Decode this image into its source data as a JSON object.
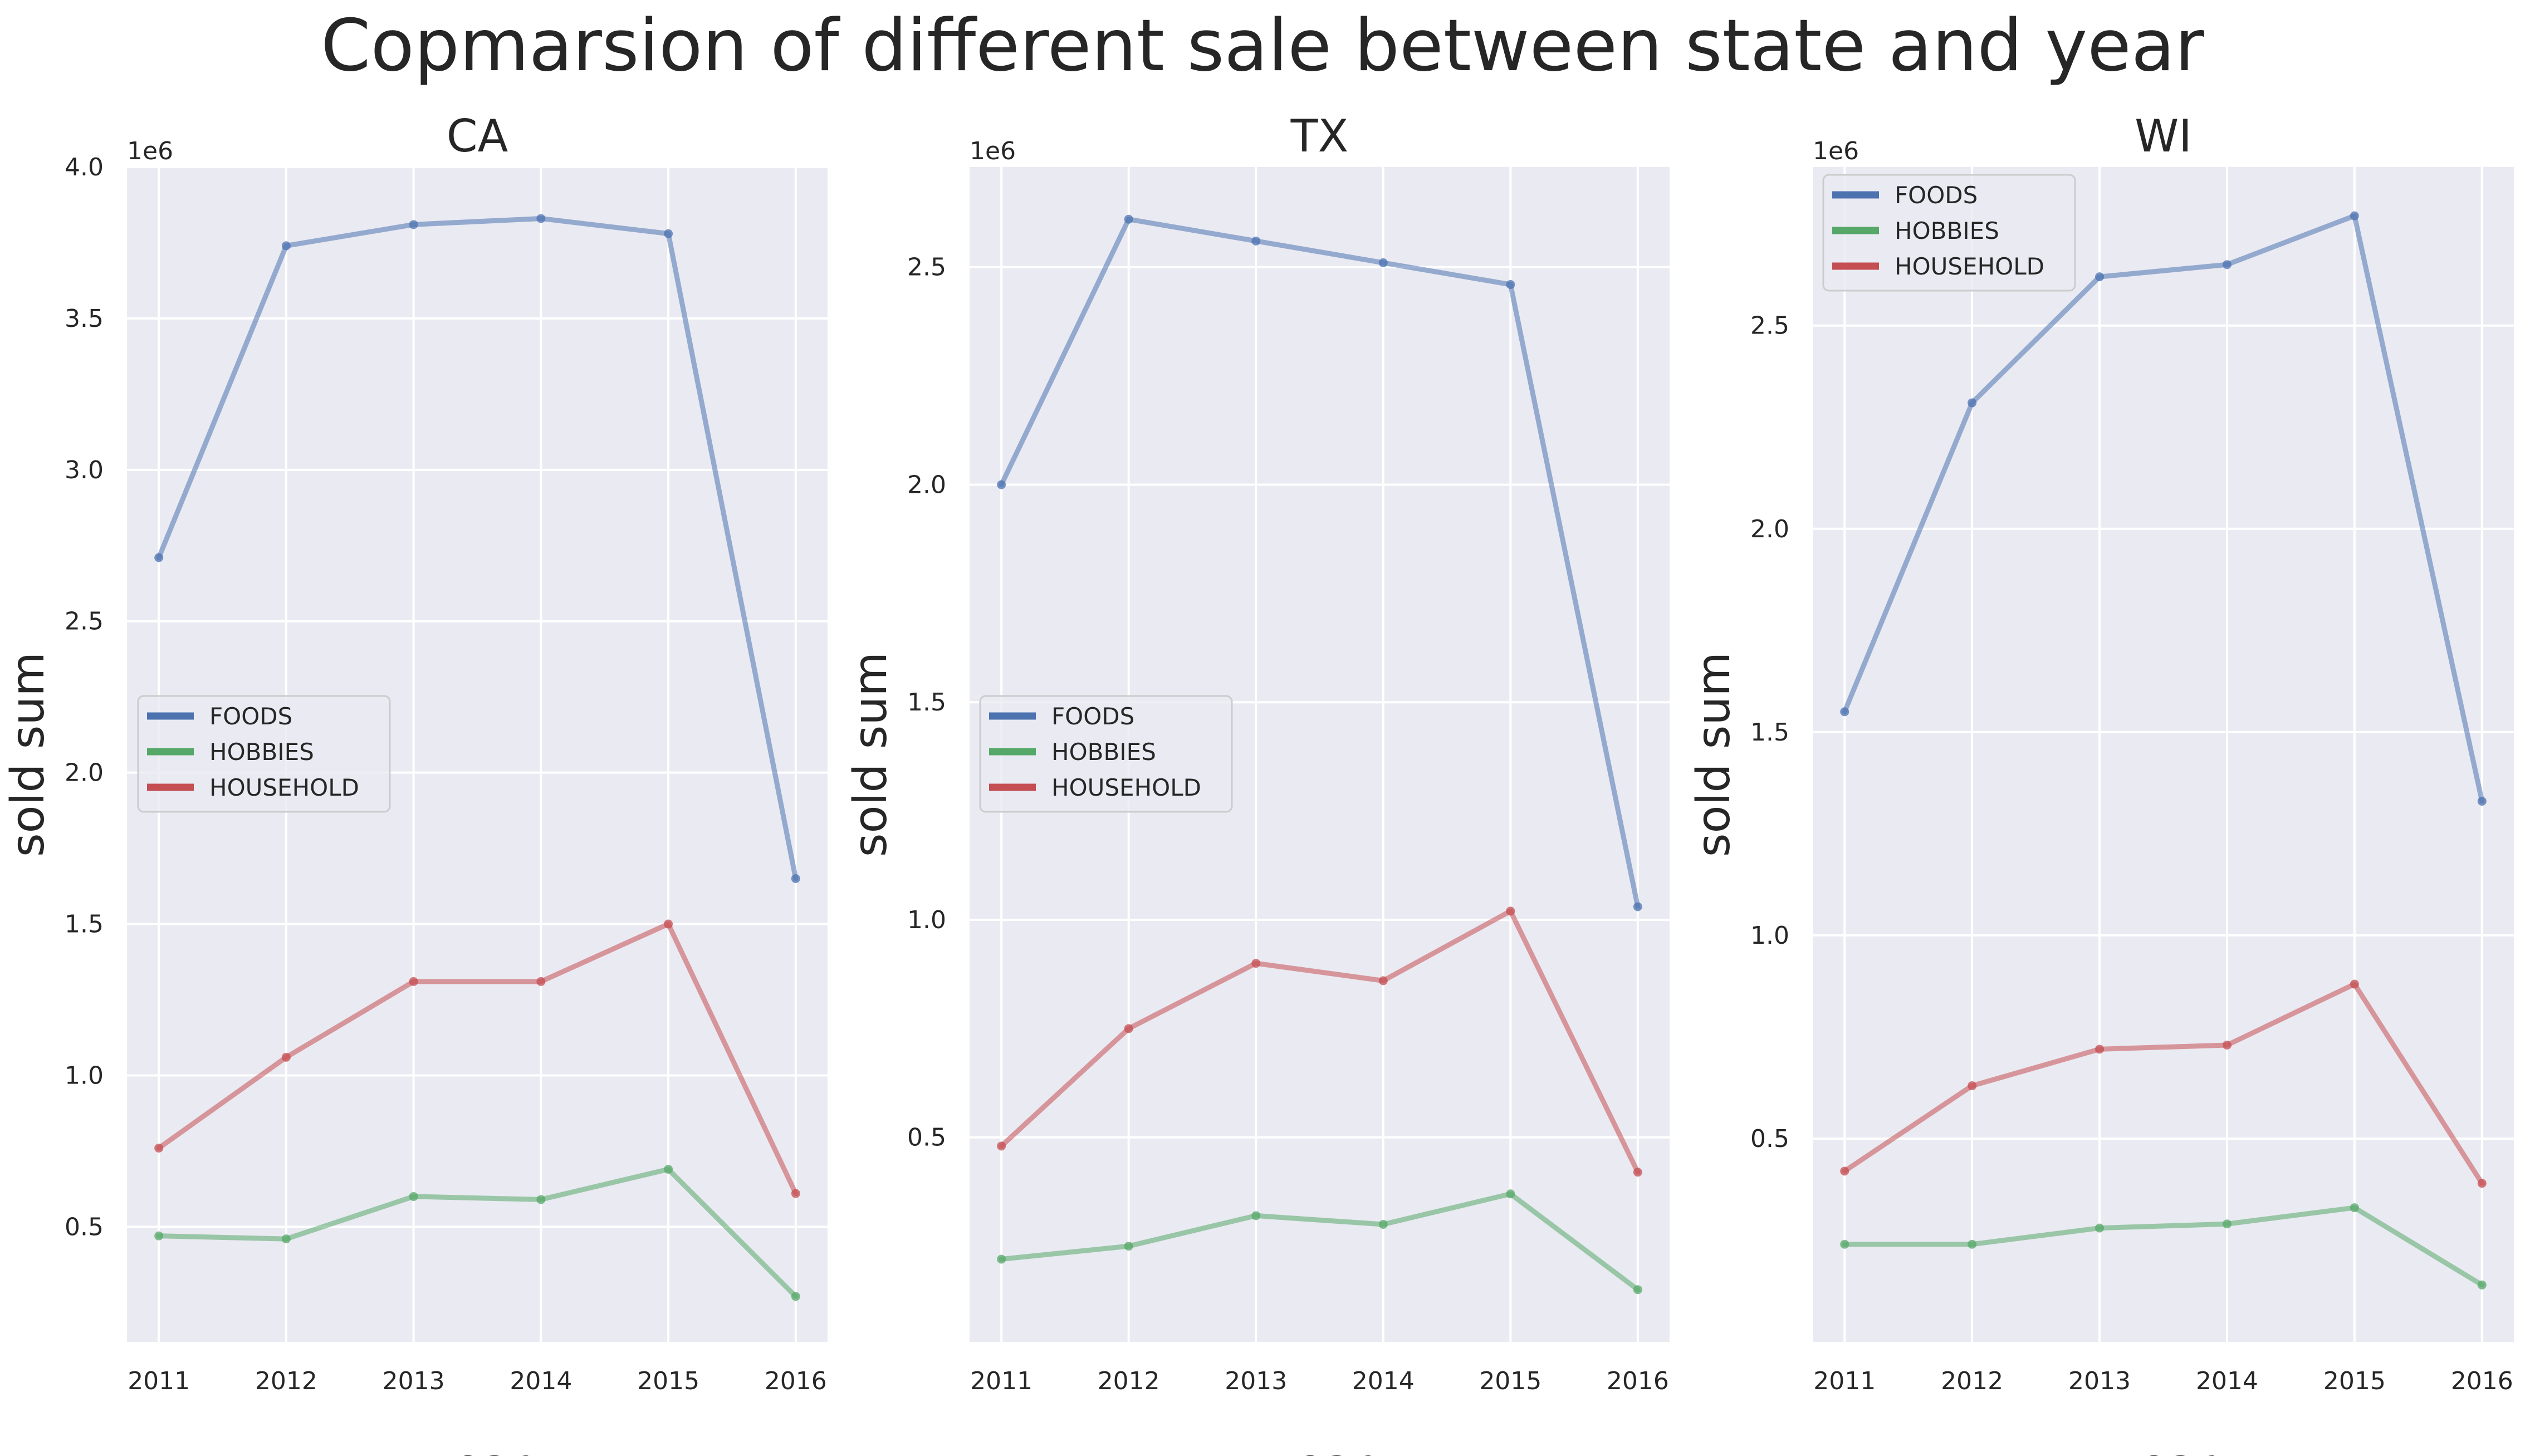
{
  "suptitle": "Copmarsion of different sale between state and year",
  "colors": {
    "background": "#eaeaf2",
    "grid": "#ffffff",
    "FOODS": "#4c72b0",
    "HOBBIES": "#55a868",
    "HOUSEHOLD": "#c44e52"
  },
  "chart_data": [
    {
      "type": "line",
      "title": "CA",
      "xlabel": "year",
      "ylabel": "sold sum",
      "offset_text": "1e6",
      "x": [
        2011,
        2012,
        2013,
        2014,
        2015,
        2016
      ],
      "x_tick_labels": [
        "2011",
        "2012",
        "2013",
        "2014",
        "2015",
        "2016"
      ],
      "ylim": [
        0.12,
        4.0
      ],
      "y_ticks": [
        0.5,
        1.0,
        1.5,
        2.0,
        2.5,
        3.0,
        3.5,
        4.0
      ],
      "y_tick_labels": [
        "0.5",
        "1.0",
        "1.5",
        "2.0",
        "2.5",
        "3.0",
        "3.5",
        "4.0"
      ],
      "grid": true,
      "legend_position": "center-left",
      "series": [
        {
          "name": "FOODS",
          "values": [
            2.71,
            3.74,
            3.81,
            3.83,
            3.78,
            1.65
          ]
        },
        {
          "name": "HOBBIES",
          "values": [
            0.47,
            0.46,
            0.6,
            0.59,
            0.69,
            0.27
          ]
        },
        {
          "name": "HOUSEHOLD",
          "values": [
            0.76,
            1.06,
            1.31,
            1.31,
            1.5,
            0.61
          ]
        }
      ]
    },
    {
      "type": "line",
      "title": "TX",
      "xlabel": "year",
      "ylabel": "sold sum",
      "offset_text": "1e6",
      "x": [
        2011,
        2012,
        2013,
        2014,
        2015,
        2016
      ],
      "x_tick_labels": [
        "2011",
        "2012",
        "2013",
        "2014",
        "2015",
        "2016"
      ],
      "ylim": [
        0.03,
        2.73
      ],
      "y_ticks": [
        0.5,
        1.0,
        1.5,
        2.0,
        2.5
      ],
      "y_tick_labels": [
        "0.5",
        "1.0",
        "1.5",
        "2.0",
        "2.5"
      ],
      "grid": true,
      "legend_position": "center-left",
      "series": [
        {
          "name": "FOODS",
          "values": [
            2.0,
            2.61,
            2.56,
            2.51,
            2.46,
            1.03
          ]
        },
        {
          "name": "HOBBIES",
          "values": [
            0.22,
            0.25,
            0.32,
            0.3,
            0.37,
            0.15
          ]
        },
        {
          "name": "HOUSEHOLD",
          "values": [
            0.48,
            0.75,
            0.9,
            0.86,
            1.02,
            0.42
          ]
        }
      ]
    },
    {
      "type": "line",
      "title": "WI",
      "xlabel": "year",
      "ylabel": "sold sum",
      "offset_text": "1e6",
      "x": [
        2011,
        2012,
        2013,
        2014,
        2015,
        2016
      ],
      "x_tick_labels": [
        "2011",
        "2012",
        "2013",
        "2014",
        "2015",
        "2016"
      ],
      "ylim": [
        0.0,
        2.89
      ],
      "y_ticks": [
        0.5,
        1.0,
        1.5,
        2.0,
        2.5
      ],
      "y_tick_labels": [
        "0.5",
        "1.0",
        "1.5",
        "2.0",
        "2.5"
      ],
      "grid": true,
      "legend_position": "top-left",
      "series": [
        {
          "name": "FOODS",
          "values": [
            1.55,
            2.31,
            2.62,
            2.65,
            2.77,
            1.33
          ]
        },
        {
          "name": "HOBBIES",
          "values": [
            0.24,
            0.24,
            0.28,
            0.29,
            0.33,
            0.14
          ]
        },
        {
          "name": "HOUSEHOLD",
          "values": [
            0.42,
            0.63,
            0.72,
            0.73,
            0.88,
            0.39
          ]
        }
      ]
    }
  ]
}
